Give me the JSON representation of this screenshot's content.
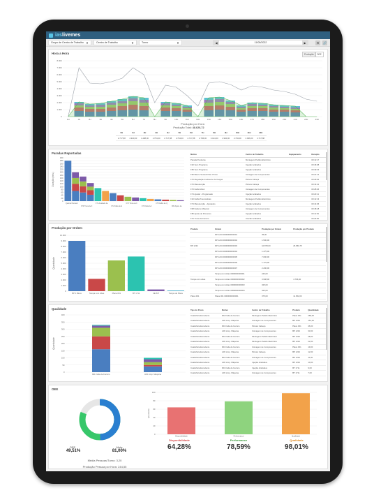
{
  "app": {
    "name_a": "ias",
    "name_b": "livemes"
  },
  "filters": [
    {
      "label": "Grupo de Centro de Trabalho"
    },
    {
      "label": "Centro de Trabalho"
    },
    {
      "label": "Turno"
    }
  ],
  "date": "11/05/2022",
  "hora": {
    "title": "Hora a Hora",
    "toggle_a": "Produção",
    "toggle_b": "OEE",
    "y_ticks": [
      "8.000",
      "7.000",
      "6.000",
      "5.000",
      "4.000",
      "3.000",
      "2.000",
      "1.000",
      "0"
    ],
    "x_label": "Produção por Hora",
    "total_label": "Produção Total:",
    "total_value": "48.626,72",
    "table_headers": [
      "0H",
      "1H",
      "2H",
      "3H",
      "4H",
      "5H",
      "6H",
      "7H",
      "8H",
      "9H",
      "10H",
      "11H",
      "12H"
    ],
    "table_values": [
      "2.717,88",
      "2.940,00",
      "1.498,00",
      "2.754,00",
      "2.717,88",
      "2.794,00",
      "2.717,88",
      "2.796,00",
      "3.124,00",
      "2.940,00",
      "2.794,00",
      "2.096,00",
      "2.717,88"
    ]
  },
  "paradas": {
    "title": "Paradas Reportadas",
    "y_label": "Duração (min.)",
    "y_ticks": [
      "300",
      "280",
      "260",
      "240",
      "220",
      "200",
      "180",
      "160",
      "140",
      "120",
      "100",
      "80",
      "60",
      "40",
      "20",
      "0"
    ],
    "categories": [
      "Quebra Pendente",
      "F70 Troca de Ferram.",
      "F71 Acabado da Ferram.",
      "F72 Falta de Energia",
      "F73 Troca de Ferram.",
      "F74 Falta de Ind. Peca",
      "F75 Falha de Qualidade",
      "F80 Ajuste de Processo"
    ],
    "table_headers": [
      "Motivo",
      "Centro de Trabalho",
      "Equipamento",
      "Duração"
    ],
    "table_rows": [
      [
        "Parada Pendente",
        "Montagem Pedido Eletrônico",
        "",
        "00:12:17"
      ],
      [
        "F20 Sem Programa",
        "Injeção Acabados",
        "",
        "00:46:08"
      ],
      [
        "F65 Sem Programa",
        "Injeção Acabados",
        "",
        "00:39:15"
      ],
      [
        "F60 Banco Sociedd Sist. Prima",
        "Usinagem de Componentes",
        "",
        "00:21:14"
      ],
      [
        "F70 Regulação Ineficiente de Cargas",
        "Pintura Cabeça",
        "",
        "00:29:52"
      ],
      [
        "F70 Manutenção",
        "Pintura Cabeça",
        "",
        "00:14:41"
      ],
      [
        "F70 Falha Motor",
        "Usinagem de Componentes",
        "",
        "00:28:46"
      ],
      [
        "F74 Ajustar - Programado",
        "Injeção Acabados",
        "",
        "00:23:11"
      ],
      [
        "F10 Falha Pneumáticas",
        "Montagem Pedido Eletrônico",
        "",
        "00:12:13"
      ],
      [
        "F74 Manutenção - Ajustados",
        "Injeção Acabados",
        "",
        "00:14:45"
      ],
      [
        "F08 Falta de Material",
        "Usinagem de Componentes",
        "",
        "00:18:18"
      ],
      [
        "F80 Ajuste de Processo",
        "Injeção Acabados",
        "",
        "00:11:52"
      ],
      [
        "F70 Troca de Ferram.",
        "Injeção Acabados",
        "",
        "00:24:50"
      ],
      [
        "F80 Ajuste de Processo",
        "Usinagem de Componentes",
        "",
        "00:16:15"
      ]
    ]
  },
  "ordem": {
    "title": "Produção por Ordem",
    "y_label": "Quantidade",
    "y_ticks": [
      "10.000",
      "9.000",
      "8.000",
      "7.000",
      "6.000",
      "5.000",
      "4.000",
      "3.000",
      "2.000",
      "1.000",
      "0"
    ],
    "categories": [
      "BP 1 Bloco",
      "Tampa com Abas",
      "Placa 001",
      "BT 1711",
      "CE 847",
      "Tampa de Placa"
    ],
    "table_headers": [
      "Produto",
      "Ordem",
      "Produção por Ordem",
      "Produção por Produto"
    ],
    "table_rows": [
      [
        "",
        "RP 1234 0000000000001",
        "35,00",
        ""
      ],
      [
        "",
        "RP 1234 0000000000002",
        "1.500,00",
        ""
      ],
      [
        "BP 1234",
        "RP 1234 0000000000003",
        "10.878,00",
        "26.860,75"
      ],
      [
        "",
        "RP 1234 0000000000004",
        "1.475,00",
        ""
      ],
      [
        "",
        "RP 1234 0000000000005",
        "7.096,00",
        ""
      ],
      [
        "",
        "RP 1234 0000000000006",
        "1.179,00",
        ""
      ],
      [
        "",
        "RP 1234 0000000000007",
        "2.296,00",
        ""
      ],
      [
        "",
        "Tampa com Abas 0000000000001",
        "240,00",
        ""
      ],
      [
        "Tampa com abas",
        "Tampa com Abas 0000000000002",
        "3.908,00",
        "4.796,00"
      ],
      [
        "",
        "Tampa com Abas 0000000000003",
        "325,00",
        ""
      ],
      [
        "",
        "Tampa com Abas 0000000000004",
        "323,00",
        ""
      ],
      [
        "Placa 001",
        "Placa 001 0000000000001",
        "375,00",
        "11.052,00"
      ]
    ]
  },
  "qualidade": {
    "title": "Qualidade",
    "y_label": "Quantidade",
    "y_ticks": [
      "400",
      "350",
      "300",
      "250",
      "200",
      "150",
      "100",
      "50",
      "0"
    ],
    "categories": [
      "901 Falta de Ferram.",
      "A03 Limp. Máquina"
    ],
    "table_headers": [
      "Tipo do Posto",
      "Motivo",
      "Centro de Trabalho",
      "Produto",
      "Quantidade"
    ],
    "table_rows": [
      [
        "Insatisfeita Excedente",
        "902 Falta de Ferram.",
        "Montagem Pedido Eletrônico",
        "Placa 001",
        "280,00"
      ],
      [
        "Insatisfeita Excedente",
        "A03 Limp. Máquina",
        "Usinagem de Componentes",
        "BP 1234",
        "151,00"
      ],
      [
        "Insatisfeita Excedente",
        "901 Falta de Ferram.",
        "Pintura Cabeça",
        "Placa 001",
        "46,00"
      ],
      [
        "Insatisfeita Excedente",
        "A03 Limp. Máquina",
        "Usinagem de Componentes",
        "BP 1234",
        "33,00"
      ],
      [
        "Insatisfeita Excedente",
        "901 Falta de Ferram.",
        "Montagem Pedido Eletrônico",
        "BP 1234",
        "28,00"
      ],
      [
        "Insatisfeita Excedente",
        "A03 Limp. Máquina",
        "Montagem Pedido Eletrônico",
        "BP 1234",
        "22,00"
      ],
      [
        "Insatisfeita Excedente",
        "901 Falta de Ferram.",
        "Usinagem de Componentes",
        "Placa 001",
        "19,00"
      ],
      [
        "Insatisfeita Excedente",
        "A03 Limp. Máquina",
        "Pintura Cabeça",
        "BP 1234",
        "12,00"
      ],
      [
        "Insatisfeita Excedente",
        "901 Falta de Ferram.",
        "Usinagem de Componentes",
        "BP 1234",
        "11,00"
      ],
      [
        "Insatisfeita Excedente",
        "A03 Limp. Máquina",
        "Injeção Acabados",
        "BP 1234",
        "10,00"
      ],
      [
        "Insatisfeita Excedente",
        "901 Falta de Ferram.",
        "Injeção Acabados",
        "BT 1711",
        "9,00"
      ],
      [
        "Insatisfeita Excedente",
        "A03 Limp. Máquina",
        "Usinagem de Componentes",
        "BT 1711",
        "7,00"
      ]
    ]
  },
  "oee": {
    "title": "OEE",
    "oee_label": "OEE",
    "oee_value": "49,51%",
    "meta_label": "Meta",
    "meta_value": "81,00%",
    "pessoas_label": "Média Pessoas/Turno:",
    "pessoas_value": "3,20",
    "prod_pessoa_label": "Produção Pessoa por Hora:",
    "prod_pessoa_value": "244,55",
    "y_label": "Quociente",
    "y_ticks": [
      "100",
      "80",
      "60",
      "40",
      "20",
      "0"
    ],
    "kpis": [
      {
        "label": "Disponibilidade",
        "value": "64,28%",
        "color": "#d94a4a"
      },
      {
        "label": "Performance",
        "value": "78,59%",
        "color": "#3a9a3a"
      },
      {
        "label": "Qualidade",
        "value": "98,01%",
        "color": "#e08a20"
      }
    ]
  },
  "chart_data": [
    {
      "type": "area",
      "title": "Hora a Hora",
      "xlabel": "Produção por Hora",
      "categories": [
        "0H",
        "1H",
        "2H",
        "3H",
        "4H",
        "5H",
        "6H",
        "7H",
        "8H",
        "9H",
        "10H",
        "11H",
        "12H",
        "13H",
        "14H",
        "15H",
        "16H",
        "17H",
        "18H",
        "19H",
        "20H",
        "21H",
        "22H",
        "23H"
      ],
      "series": [
        {
          "name": "Azul",
          "values": [
            0,
            800,
            700,
            700,
            800,
            900,
            1000,
            900,
            0,
            800,
            800,
            700,
            0,
            900,
            1000,
            900,
            700,
            800,
            800,
            700,
            700,
            600,
            0,
            0
          ],
          "color": "#3f6fa8"
        },
        {
          "name": "Vermelho",
          "values": [
            0,
            500,
            400,
            400,
            500,
            600,
            700,
            600,
            0,
            500,
            400,
            300,
            0,
            600,
            600,
            500,
            300,
            400,
            400,
            300,
            300,
            300,
            0,
            0
          ],
          "color": "#c04a4a"
        },
        {
          "name": "Verde",
          "values": [
            0,
            300,
            300,
            300,
            400,
            400,
            500,
            500,
            0,
            300,
            300,
            200,
            0,
            500,
            500,
            400,
            200,
            300,
            300,
            300,
            200,
            200,
            0,
            0
          ],
          "color": "#8dbf4e"
        },
        {
          "name": "Roxo",
          "values": [
            0,
            300,
            200,
            300,
            300,
            300,
            400,
            400,
            0,
            300,
            200,
            200,
            0,
            400,
            400,
            300,
            200,
            300,
            200,
            200,
            200,
            200,
            0,
            0
          ],
          "color": "#8a63b0"
        },
        {
          "name": "Ciano",
          "values": [
            0,
            200,
            200,
            200,
            200,
            300,
            300,
            300,
            0,
            200,
            200,
            200,
            0,
            300,
            300,
            200,
            200,
            200,
            200,
            200,
            200,
            200,
            0,
            0
          ],
          "color": "#3fb6c9"
        }
      ],
      "line": [
        0,
        7000,
        4800,
        4700,
        5000,
        5500,
        7000,
        6000,
        2000,
        4500,
        4200,
        3000,
        1500,
        4800,
        5000,
        4600,
        3800,
        4400,
        4200,
        3800,
        3600,
        3200,
        2500,
        2200
      ],
      "ylim": [
        0,
        8000
      ]
    },
    {
      "type": "bar",
      "title": "Paradas Reportadas",
      "ylabel": "Duração (min.)",
      "categories": [
        "Quebra Pendente",
        "F70 Troca de Ferram.",
        "F71 Acabado da Ferram.",
        "F72 Falta de Energia",
        "F73 Troca de Ferram.",
        "F74 Falta de Ind. Peca",
        "F75 Falha de Qualidade",
        "F80 Ajuste de Processo",
        "X1",
        "X2",
        "X3",
        "X4",
        "X5",
        "X6",
        "X7",
        "X8"
      ],
      "values": [
        280,
        200,
        170,
        125,
        90,
        70,
        55,
        40,
        30,
        25,
        20,
        15,
        12,
        10,
        8,
        6
      ],
      "ylim": [
        0,
        300
      ]
    },
    {
      "type": "bar",
      "title": "Produção por Ordem",
      "ylabel": "Quantidade",
      "categories": [
        "BP 1 Bloco",
        "Tampa com Abas",
        "Placa 001",
        "BT 1711",
        "CE 847",
        "Tampa de Placa"
      ],
      "values": [
        9000,
        2200,
        5500,
        6200,
        300,
        100
      ],
      "colors": [
        "#4a7ec0",
        "#c94848",
        "#9bc04e",
        "#2cc3b0",
        "#7d5aa8",
        "#2fa1c5"
      ],
      "ylim": [
        0,
        10000
      ]
    },
    {
      "type": "bar",
      "title": "Qualidade",
      "ylabel": "Quantidade",
      "categories": [
        "901 Falta de Ferram.",
        "A03 Limp. Máquina"
      ],
      "series": [
        {
          "name": "a",
          "values": [
            160,
            40
          ],
          "color": "#4a7ec0"
        },
        {
          "name": "b",
          "values": [
            90,
            10
          ],
          "color": "#c94848"
        },
        {
          "name": "c",
          "values": [
            60,
            20
          ],
          "color": "#9bc04e"
        },
        {
          "name": "d",
          "values": [
            15,
            20
          ],
          "color": "#7d5aa8"
        },
        {
          "name": "e",
          "values": [
            5,
            10
          ],
          "color": "#2cc3b0"
        }
      ],
      "ylim": [
        0,
        400
      ]
    },
    {
      "type": "pie",
      "title": "OEE",
      "categories": [
        "OEE",
        "Meta"
      ],
      "values": [
        49.51,
        81.0
      ]
    },
    {
      "type": "bar",
      "ylabel": "Quociente",
      "categories": [
        "Disponibilidade",
        "Performance",
        "Qualidade"
      ],
      "values": [
        64.28,
        78.59,
        98.01
      ],
      "colors": [
        "#e87272",
        "#8ed37e",
        "#f2a24a"
      ],
      "ylim": [
        0,
        100
      ]
    }
  ]
}
